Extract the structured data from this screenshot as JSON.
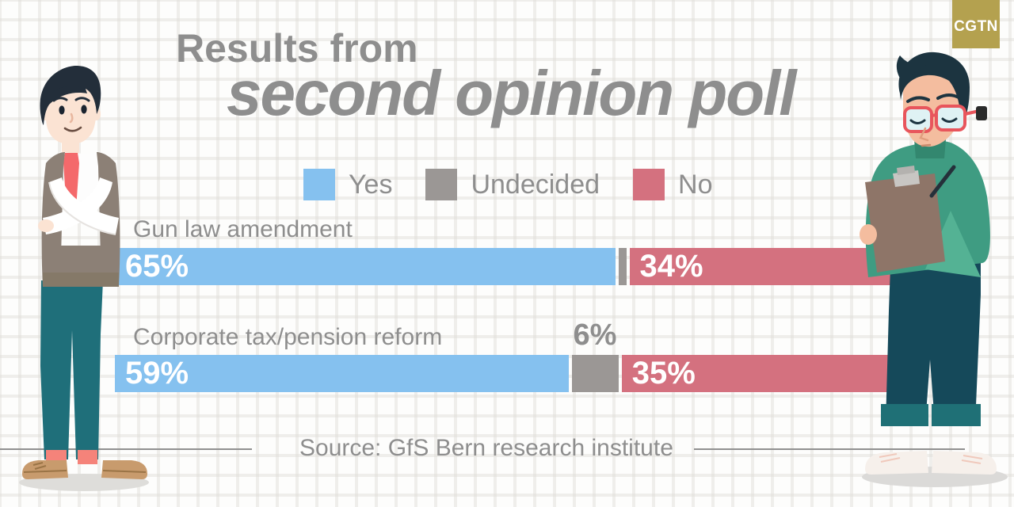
{
  "logo": {
    "text": "CGTN",
    "bg_color": "#B4A14F"
  },
  "title": {
    "line1": "Results from",
    "line2": "second opinion poll"
  },
  "legend": {
    "items": [
      {
        "label": "Yes",
        "color": "#85C1EF"
      },
      {
        "label": "Undecided",
        "color": "#9B9795"
      },
      {
        "label": "No",
        "color": "#D4717F"
      }
    ]
  },
  "chart_data": {
    "type": "bar",
    "subtype": "horizontal-stacked",
    "unit": "%",
    "xlim": [
      0,
      100
    ],
    "grid": false,
    "legend_position": "top",
    "categories": [
      "Gun law amendment",
      "Corporate tax/pension reform"
    ],
    "series": [
      {
        "name": "Yes",
        "color": "#85C1EF",
        "values": [
          65,
          59
        ]
      },
      {
        "name": "Undecided",
        "color": "#9B9795",
        "values": [
          1,
          6
        ]
      },
      {
        "name": "No",
        "color": "#D4717F",
        "values": [
          34,
          35
        ]
      }
    ]
  },
  "rows": [
    {
      "label": "Gun law amendment",
      "yes_label": "65%",
      "undecided_label": "",
      "no_label": "34%"
    },
    {
      "label": "Corporate tax/pension reform",
      "yes_label": "59%",
      "undecided_label": "6%",
      "no_label": "35%"
    }
  ],
  "source": "Source: GfS Bern research institute"
}
